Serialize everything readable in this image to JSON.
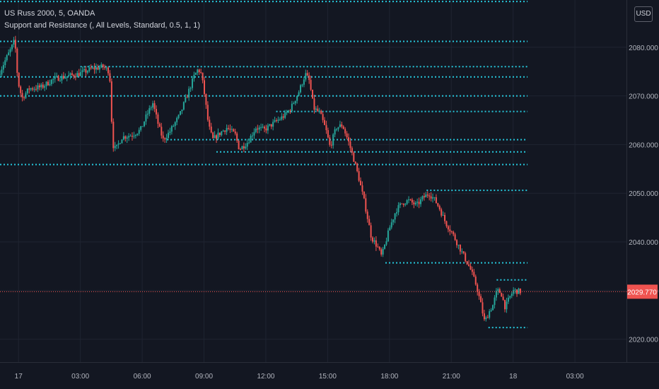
{
  "header": {
    "title": "US Russ 2000, 5, OANDA",
    "indicator": "Support and Resistance (, All Levels, Standard, 0.5, 1, 1)"
  },
  "currency_button": "USD",
  "colors": {
    "background": "#131722",
    "grid": "#1f2431",
    "axis_text": "#b2b5be",
    "level_line": "#26c6da",
    "candle_up": "#26a69a",
    "candle_down": "#ef5350",
    "last_price": "#ef5350"
  },
  "chart_data": {
    "type": "candlestick",
    "symbol": "US Russ 2000",
    "interval": "5",
    "source": "OANDA",
    "x_unit": "hours from 00:00 on the 17th",
    "y_axis": {
      "range": [
        2015.3,
        2089.7
      ],
      "ticks": [
        2020,
        2030,
        2040,
        2050,
        2060,
        2070,
        2080
      ],
      "tick_labels": [
        "2020.000",
        "2030.000",
        "2040.000",
        "2050.000",
        "2060.000",
        "2070.000",
        "2080.000"
      ]
    },
    "x_axis": {
      "range": [
        -0.9,
        29.5
      ],
      "ticks": [
        0,
        3,
        6,
        9,
        12,
        15,
        18,
        21,
        24,
        27
      ],
      "tick_labels": [
        "17",
        "03:00",
        "06:00",
        "09:00",
        "12:00",
        "15:00",
        "18:00",
        "21:00",
        "18",
        "03:00"
      ]
    },
    "last_price": 2029.77,
    "last_price_label": "2029.770",
    "grid": true,
    "price_path": [
      [
        -0.9,
        2074.2
      ],
      [
        -0.6,
        2077.0
      ],
      [
        -0.3,
        2079.5
      ],
      [
        -0.1,
        2081.5
      ],
      [
        0.05,
        2073.0
      ],
      [
        0.25,
        2069.5
      ],
      [
        0.6,
        2071.5
      ],
      [
        1.2,
        2071.8
      ],
      [
        1.8,
        2073.5
      ],
      [
        2.4,
        2074.0
      ],
      [
        3.0,
        2074.5
      ],
      [
        3.6,
        2075.5
      ],
      [
        4.2,
        2076.0
      ],
      [
        4.5,
        2075.0
      ],
      [
        4.65,
        2060.0
      ],
      [
        4.8,
        2059.0
      ],
      [
        5.1,
        2061.5
      ],
      [
        5.6,
        2062.0
      ],
      [
        6.0,
        2063.0
      ],
      [
        6.3,
        2066.0
      ],
      [
        6.6,
        2068.5
      ],
      [
        6.9,
        2063.5
      ],
      [
        7.1,
        2061.0
      ],
      [
        7.4,
        2062.5
      ],
      [
        7.9,
        2066.0
      ],
      [
        8.3,
        2070.5
      ],
      [
        8.6,
        2074.0
      ],
      [
        8.8,
        2075.5
      ],
      [
        8.95,
        2074.5
      ],
      [
        9.1,
        2070.5
      ],
      [
        9.3,
        2064.0
      ],
      [
        9.5,
        2061.0
      ],
      [
        9.9,
        2062.5
      ],
      [
        10.2,
        2063.5
      ],
      [
        10.6,
        2062.0
      ],
      [
        10.8,
        2059.0
      ],
      [
        11.2,
        2060.5
      ],
      [
        11.6,
        2063.5
      ],
      [
        12.0,
        2063.0
      ],
      [
        12.5,
        2064.5
      ],
      [
        13.0,
        2066.0
      ],
      [
        13.3,
        2067.5
      ],
      [
        13.7,
        2071.0
      ],
      [
        14.0,
        2074.5
      ],
      [
        14.2,
        2073.0
      ],
      [
        14.4,
        2067.5
      ],
      [
        14.7,
        2066.5
      ],
      [
        15.0,
        2063.0
      ],
      [
        15.2,
        2059.5
      ],
      [
        15.5,
        2063.5
      ],
      [
        15.8,
        2064.0
      ],
      [
        16.1,
        2060.5
      ],
      [
        16.35,
        2057.0
      ],
      [
        16.6,
        2053.0
      ],
      [
        16.9,
        2047.5
      ],
      [
        17.2,
        2041.0
      ],
      [
        17.5,
        2039.0
      ],
      [
        17.7,
        2037.0
      ],
      [
        17.9,
        2040.0
      ],
      [
        18.1,
        2043.0
      ],
      [
        18.4,
        2046.5
      ],
      [
        18.7,
        2048.0
      ],
      [
        19.0,
        2048.5
      ],
      [
        19.4,
        2047.5
      ],
      [
        19.7,
        2049.0
      ],
      [
        20.0,
        2050.0
      ],
      [
        20.3,
        2048.5
      ],
      [
        20.5,
        2047.0
      ],
      [
        20.8,
        2044.0
      ],
      [
        21.1,
        2042.0
      ],
      [
        21.4,
        2039.5
      ],
      [
        21.7,
        2037.0
      ],
      [
        22.0,
        2034.5
      ],
      [
        22.3,
        2031.0
      ],
      [
        22.5,
        2027.5
      ],
      [
        22.7,
        2023.5
      ],
      [
        22.9,
        2025.5
      ],
      [
        23.1,
        2027.0
      ],
      [
        23.3,
        2030.0
      ],
      [
        23.5,
        2029.5
      ],
      [
        23.7,
        2026.5
      ],
      [
        23.9,
        2028.5
      ],
      [
        24.1,
        2030.0
      ],
      [
        24.4,
        2029.8
      ]
    ],
    "levels": [
      {
        "price": 2089.4,
        "x_start": -0.9,
        "x_end": 24.7
      },
      {
        "price": 2081.2,
        "x_start": -0.9,
        "x_end": 24.7
      },
      {
        "price": 2076.0,
        "x_start": 3.0,
        "x_end": 24.7
      },
      {
        "price": 2073.9,
        "x_start": -0.9,
        "x_end": 24.7
      },
      {
        "price": 2070.0,
        "x_start": -0.9,
        "x_end": 24.7
      },
      {
        "price": 2066.8,
        "x_start": 12.5,
        "x_end": 24.7
      },
      {
        "price": 2061.0,
        "x_start": 7.2,
        "x_end": 24.7
      },
      {
        "price": 2058.5,
        "x_start": 9.6,
        "x_end": 24.7
      },
      {
        "price": 2055.9,
        "x_start": -0.9,
        "x_end": 24.7
      },
      {
        "price": 2050.6,
        "x_start": 19.8,
        "x_end": 24.7
      },
      {
        "price": 2035.7,
        "x_start": 17.8,
        "x_end": 24.7
      },
      {
        "price": 2032.2,
        "x_start": 23.2,
        "x_end": 24.7
      },
      {
        "price": 2022.4,
        "x_start": 22.8,
        "x_end": 24.7
      }
    ]
  }
}
